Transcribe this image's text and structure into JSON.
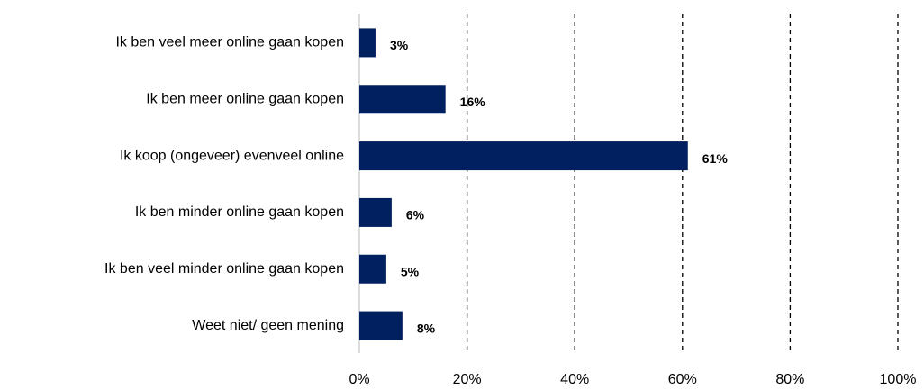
{
  "chart_data": {
    "type": "barh",
    "categories": [
      "Ik ben veel meer online gaan kopen",
      "Ik ben meer online gaan kopen",
      "Ik koop (ongeveer) evenveel online",
      "Ik ben minder online gaan kopen",
      "Ik ben veel minder online gaan kopen",
      "Weet niet/ geen mening"
    ],
    "values": [
      3,
      16,
      61,
      6,
      5,
      8
    ],
    "value_labels": [
      "3%",
      "16%",
      "61%",
      "6%",
      "5%",
      "8%"
    ],
    "color": "#002060",
    "xlim": [
      0,
      100
    ],
    "xticks": [
      {
        "value": 0,
        "label": "0%"
      },
      {
        "value": 20,
        "label": "20%"
      },
      {
        "value": 40,
        "label": "40%"
      },
      {
        "value": 60,
        "label": "60%"
      },
      {
        "value": 80,
        "label": "80%"
      },
      {
        "value": 100,
        "label": "100%"
      }
    ],
    "grid": true
  }
}
